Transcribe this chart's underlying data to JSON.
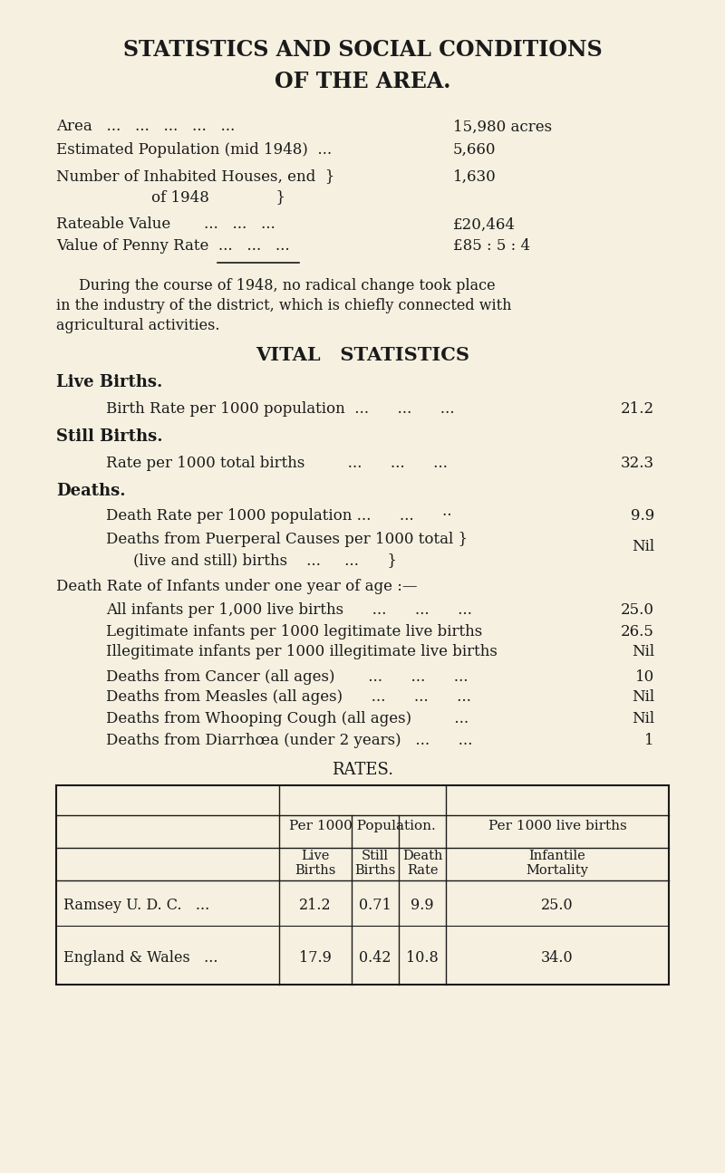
{
  "bg_color": "#f5f0e0",
  "text_color": "#1a1a1a",
  "title1": "STATISTICS AND SOCIAL CONDITIONS",
  "title2": "OF THE AREA.",
  "vital_title": "VITAL   STATISTICS",
  "rates_title": "RATES.",
  "table_col_header1": "Per 1000 Population.",
  "table_col_header2": "Per 1000 live births",
  "table_sub_headers": [
    "Live\nBirths",
    "Still\nBirths",
    "Death\nRate",
    "Infantile\nMortality"
  ],
  "table_rows": [
    [
      "Ramsey U. D. C.   ...",
      "21.2",
      "0.71",
      "9.9",
      "25.0"
    ],
    [
      "England & Wales   ...",
      "17.9",
      "0.42",
      "10.8",
      "34.0"
    ]
  ]
}
